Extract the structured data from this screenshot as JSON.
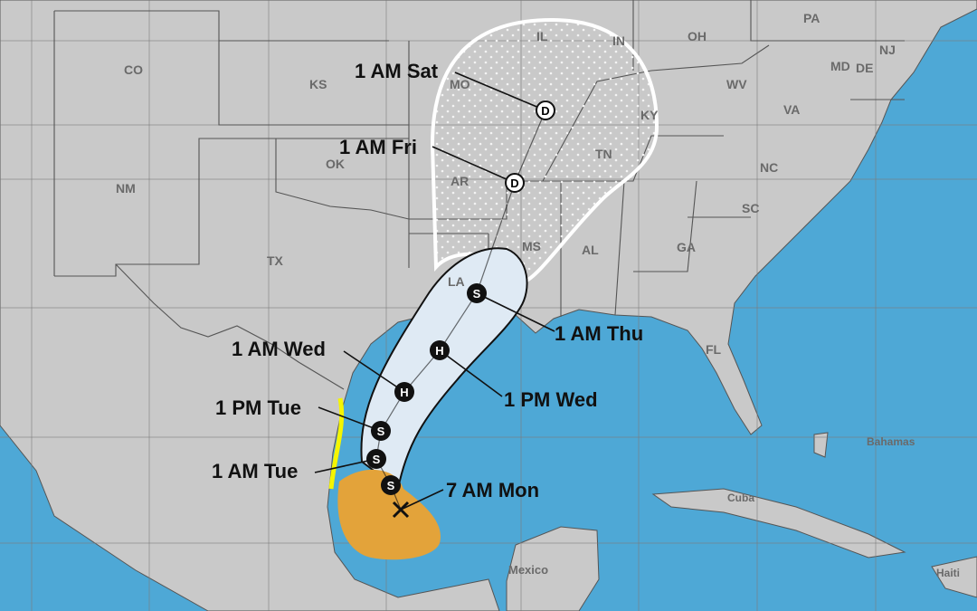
{
  "map": {
    "colors": {
      "ocean": "#4ea8d6",
      "land": "#c9c9c9",
      "cone_inner": "#dfeaf4",
      "tropical_storm_wind": "#e3a33a",
      "warning": "#f5f500"
    },
    "states": [
      "CO",
      "KS",
      "MO",
      "IL",
      "IN",
      "OH",
      "PA",
      "NJ",
      "MD",
      "DE",
      "WV",
      "VA",
      "KY",
      "OK",
      "AR",
      "TN",
      "NC",
      "SC",
      "NM",
      "TX",
      "LA",
      "MS",
      "AL",
      "GA",
      "FL"
    ],
    "places": [
      "Bahamas",
      "Cuba",
      "Mexico",
      "Haiti"
    ],
    "forecast_points": [
      {
        "time": "7 AM Mon",
        "symbol": "X",
        "icon": "current-position-x-icon"
      },
      {
        "time": "",
        "symbol": "S",
        "icon": "tropical-storm-icon"
      },
      {
        "time": "1 AM Tue",
        "symbol": "S",
        "icon": "tropical-storm-icon"
      },
      {
        "time": "1 PM Tue",
        "symbol": "S",
        "icon": "tropical-storm-icon"
      },
      {
        "time": "1 AM Wed",
        "symbol": "H",
        "icon": "hurricane-icon"
      },
      {
        "time": "1 PM Wed",
        "symbol": "H",
        "icon": "hurricane-icon"
      },
      {
        "time": "1 AM Thu",
        "symbol": "S",
        "icon": "tropical-storm-icon"
      },
      {
        "time": "1 AM Fri",
        "symbol": "D",
        "icon": "depression-icon"
      },
      {
        "time": "1 AM Sat",
        "symbol": "D",
        "icon": "depression-icon"
      }
    ]
  }
}
